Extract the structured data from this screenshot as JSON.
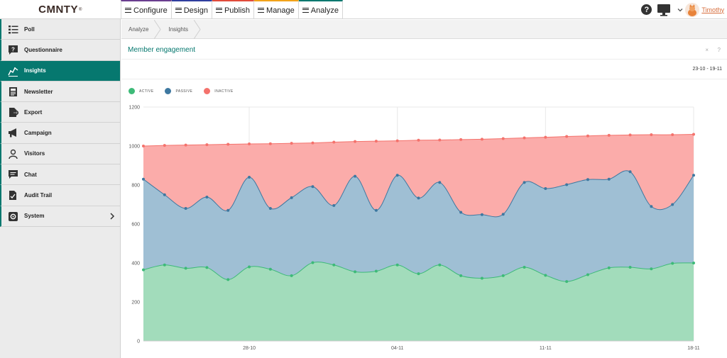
{
  "app": {
    "logo": "CMNTY",
    "logo_mark": "®"
  },
  "topnav": {
    "tabs": [
      {
        "label": "Configure",
        "color": "#6a3d8f"
      },
      {
        "label": "Design",
        "color": "#2f3e9e"
      },
      {
        "label": "Publish",
        "color": "#e14c3b"
      },
      {
        "label": "Manage",
        "color": "#f2a31a"
      },
      {
        "label": "Analyze",
        "color": "#06786f"
      }
    ]
  },
  "user": {
    "name": "Timothy",
    "help_label": "?"
  },
  "sidebar": {
    "items": [
      {
        "label": "Poll",
        "icon": "list-icon"
      },
      {
        "label": "Questionnaire",
        "icon": "question-bubble-icon"
      },
      {
        "label": "Insights",
        "icon": "line-chart-icon",
        "active": true
      },
      {
        "label": "Newsletter",
        "icon": "newspaper-icon"
      },
      {
        "label": "Export",
        "icon": "file-export-icon"
      },
      {
        "label": "Campaign",
        "icon": "megaphone-icon"
      },
      {
        "label": "Visitors",
        "icon": "user-icon"
      },
      {
        "label": "Chat",
        "icon": "chat-icon"
      },
      {
        "label": "Audit Trail",
        "icon": "audit-icon"
      },
      {
        "label": "System",
        "icon": "gear-icon",
        "has_children": true
      }
    ]
  },
  "breadcrumb": [
    "Analyze",
    "Insights"
  ],
  "panel": {
    "title": "Member engagement",
    "close_label": "×",
    "help_label": "?",
    "date_range": "23-10 - 19-11"
  },
  "colors": {
    "accent": "#06786f",
    "active": "#3dba78",
    "passive": "#3e78a0",
    "inactive": "#f4726c"
  },
  "chart_data": {
    "type": "area",
    "stacked_cumulative": true,
    "x": [
      "23-10",
      "24-10",
      "25-10",
      "26-10",
      "27-10",
      "28-10",
      "29-10",
      "30-10",
      "31-10",
      "01-11",
      "02-11",
      "03-11",
      "04-11",
      "05-11",
      "06-11",
      "07-11",
      "08-11",
      "09-11",
      "10-11",
      "11-11",
      "12-11",
      "13-11",
      "14-11",
      "15-11",
      "16-11",
      "17-11",
      "18-11"
    ],
    "x_tick_labels": [
      "28-10",
      "04-11",
      "11-11",
      "18-11"
    ],
    "series": [
      {
        "name": "ACTIVE",
        "values": [
          365,
          390,
          373,
          377,
          315,
          380,
          368,
          335,
          402,
          390,
          355,
          358,
          390,
          345,
          390,
          335,
          322,
          335,
          378,
          337,
          305,
          340,
          375,
          378,
          370,
          398,
          400
        ]
      },
      {
        "name": "PASSIVE",
        "values": [
          830,
          750,
          680,
          738,
          670,
          840,
          680,
          735,
          792,
          695,
          845,
          670,
          850,
          733,
          813,
          660,
          648,
          650,
          813,
          782,
          802,
          828,
          830,
          868,
          690,
          700,
          850
        ]
      },
      {
        "name": "INACTIVE",
        "values": [
          1000,
          1003,
          1005,
          1007,
          1009,
          1011,
          1012,
          1014,
          1016,
          1020,
          1023,
          1025,
          1027,
          1030,
          1031,
          1033,
          1035,
          1038,
          1042,
          1045,
          1049,
          1052,
          1055,
          1057,
          1058,
          1058,
          1060
        ]
      }
    ],
    "y_ticks": [
      0,
      200,
      400,
      600,
      800,
      1000,
      1200
    ],
    "ylim": [
      0,
      1200
    ],
    "grid": true,
    "legend": "top-left"
  }
}
